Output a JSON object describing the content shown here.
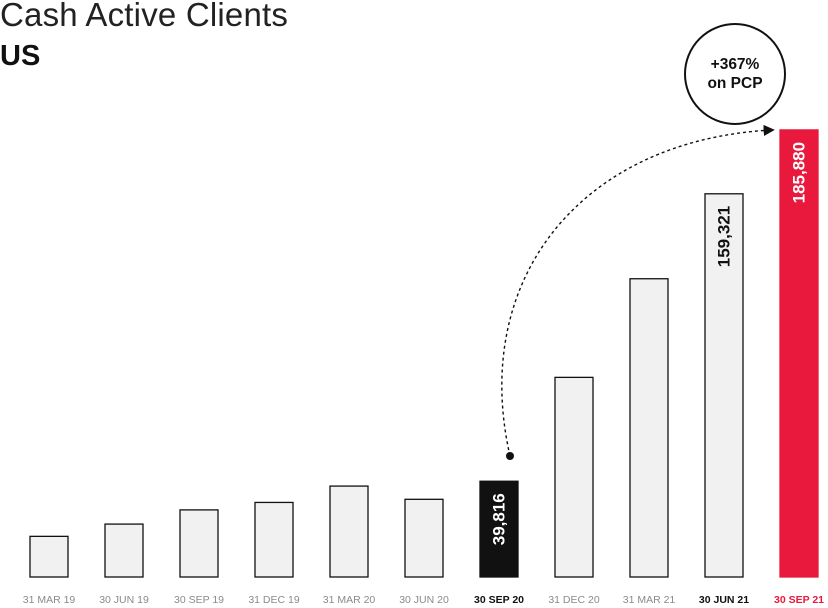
{
  "header": {
    "title": "Cash Active Clients",
    "subtitle": "US"
  },
  "callout": {
    "line1": "+367%",
    "line2": "on PCP"
  },
  "colors": {
    "bar_fill": "#f1f1f1",
    "bar_stroke": "#111111",
    "highlight_dark": "#111111",
    "highlight_red": "#e8193c",
    "tick_label": "#8a8a8a"
  },
  "chart_data": {
    "type": "bar",
    "title": "Cash Active Clients",
    "subtitle": "US",
    "categories": [
      "31 MAR 19",
      "30 JUN 19",
      "30 SEP 19",
      "31 DEC 19",
      "31 MAR 20",
      "30 JUN 20",
      "30 SEP 20",
      "31 DEC 20",
      "31 MAR 21",
      "30 JUN 21",
      "30 SEP 21"
    ],
    "values": [
      16900,
      22000,
      27900,
      31000,
      37800,
      32300,
      39816,
      83000,
      124000,
      159321,
      185880
    ],
    "data_labels": [
      "",
      "",
      "",
      "",
      "",
      "",
      "39,816",
      "",
      "",
      "159,321",
      "185,880"
    ],
    "highlight": {
      "30 SEP 20": "dark",
      "30 JUN 21": "bold-label",
      "30 SEP 21": "red"
    },
    "annotation": "+367% on PCP",
    "ylim": [
      0,
      190000
    ],
    "grid": false
  }
}
